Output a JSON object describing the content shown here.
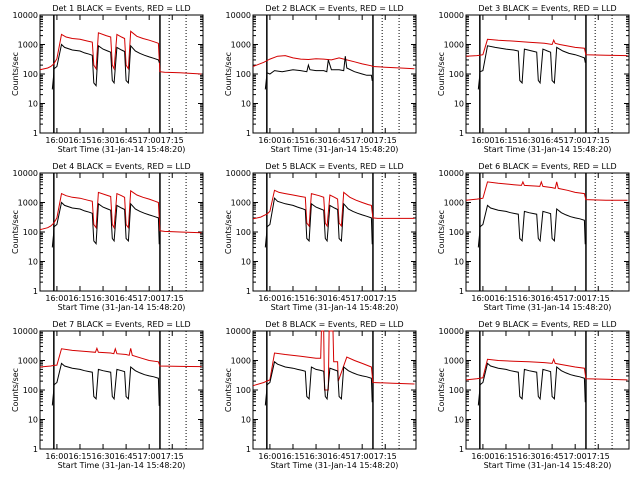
{
  "chart_data": {
    "type": "line",
    "y_scale": "log",
    "ylim": [
      1,
      10000
    ],
    "ylabel": "Counts/sec",
    "xlabel": "Start Time (31-Jan-14 15:48:20)",
    "x_ticks": [
      "16:00",
      "16:15",
      "16:30",
      "16:45",
      "17:00",
      "17:15"
    ],
    "y_ticks": [
      "1",
      "10",
      "100",
      "1000",
      "10000"
    ],
    "x_tick_times": [
      0,
      15,
      30,
      45,
      60,
      75
    ],
    "xlim": [
      -11,
      95
    ],
    "solid_markers": [
      -2,
      67
    ],
    "dotted_markers": [
      73,
      84
    ],
    "series_colors": {
      "events": "#000000",
      "lld": "#d40000"
    },
    "legend_text": "BLACK = Events, RED = LLD",
    "panels": [
      {
        "title": "Det 1",
        "events": {
          "x": [
            -3,
            -2,
            -1.8,
            0,
            3,
            5,
            10,
            15,
            18,
            21,
            23,
            24,
            25.5,
            27,
            30,
            33,
            35,
            36,
            37.2,
            39,
            42,
            44,
            45,
            46.5,
            48,
            51,
            54,
            57,
            60,
            63,
            66,
            66.5,
            67
          ],
          "y": [
            30,
            100,
            150,
            180,
            1000,
            800,
            650,
            600,
            520,
            470,
            430,
            50,
            40,
            900,
            700,
            600,
            550,
            60,
            50,
            800,
            650,
            580,
            60,
            50,
            900,
            600,
            500,
            430,
            380,
            340,
            300,
            250,
            250
          ]
        },
        "lld": {
          "x": [
            -11,
            -6,
            -4,
            -2,
            0,
            3,
            6,
            10,
            15,
            20,
            23,
            24,
            25.5,
            27,
            32,
            35,
            36,
            37.2,
            39,
            42,
            44,
            45,
            46.5,
            48,
            52,
            56,
            60,
            64,
            66,
            67,
            70,
            80,
            94
          ],
          "y": [
            140,
            160,
            180,
            220,
            330,
            2200,
            1800,
            1600,
            1500,
            1300,
            1200,
            200,
            150,
            2500,
            2000,
            1800,
            200,
            150,
            2200,
            1800,
            1600,
            200,
            150,
            2800,
            1900,
            1600,
            1400,
            1200,
            1100,
            120,
            115,
            110,
            100
          ]
        }
      },
      {
        "title": "Det 2",
        "events": {
          "x": [
            -3,
            -2,
            -1.8,
            0,
            3,
            8,
            15,
            20,
            24,
            25,
            26,
            30,
            35,
            37,
            38,
            40,
            45,
            48,
            49,
            50,
            55,
            60,
            63,
            66,
            66.5,
            67
          ],
          "y": [
            30,
            90,
            110,
            100,
            130,
            120,
            140,
            130,
            120,
            200,
            140,
            130,
            130,
            120,
            300,
            140,
            140,
            130,
            400,
            160,
            120,
            100,
            90,
            90,
            60,
            60
          ]
        },
        "lld": {
          "x": [
            -11,
            -4,
            0,
            5,
            10,
            15,
            20,
            25,
            30,
            35,
            40,
            45,
            50,
            55,
            60,
            66,
            67,
            75,
            85,
            94
          ],
          "y": [
            180,
            250,
            320,
            400,
            420,
            350,
            320,
            310,
            330,
            320,
            300,
            350,
            300,
            260,
            220,
            190,
            180,
            170,
            160,
            150
          ]
        }
      },
      {
        "title": "Det 3",
        "events": {
          "x": [
            -3,
            -2,
            -1.8,
            0,
            3,
            8,
            15,
            20,
            23,
            24,
            25.5,
            27,
            32,
            35,
            36,
            37.2,
            39,
            42,
            44,
            45,
            46.5,
            48,
            52,
            56,
            60,
            63,
            66,
            66.5,
            67
          ],
          "y": [
            30,
            90,
            120,
            130,
            900,
            800,
            700,
            650,
            600,
            60,
            50,
            700,
            600,
            550,
            60,
            50,
            700,
            600,
            550,
            60,
            50,
            800,
            600,
            500,
            450,
            400,
            350,
            250,
            250
          ]
        },
        "lld": {
          "x": [
            -11,
            -4,
            -2,
            0,
            3,
            10,
            20,
            30,
            40,
            45,
            46,
            47,
            50,
            60,
            66,
            67,
            80,
            94
          ],
          "y": [
            400,
            420,
            430,
            450,
            1500,
            1400,
            1300,
            1200,
            1100,
            1000,
            1400,
            1100,
            1000,
            800,
            750,
            450,
            430,
            420
          ]
        }
      },
      {
        "title": "Det 4",
        "events": {
          "x": [
            -3,
            -2,
            -1.8,
            0,
            3,
            5,
            10,
            15,
            18,
            21,
            23,
            24,
            25.5,
            27,
            30,
            33,
            35,
            36,
            37.2,
            39,
            42,
            44,
            45,
            46.5,
            48,
            51,
            54,
            57,
            60,
            63,
            66,
            66.5,
            67
          ],
          "y": [
            30,
            100,
            150,
            180,
            1000,
            800,
            650,
            600,
            520,
            470,
            430,
            50,
            40,
            900,
            700,
            600,
            550,
            60,
            50,
            800,
            650,
            580,
            60,
            50,
            900,
            600,
            500,
            430,
            380,
            340,
            300,
            40,
            40
          ]
        },
        "lld": {
          "x": [
            -11,
            -6,
            -4,
            -2,
            0,
            3,
            6,
            10,
            15,
            20,
            23,
            24,
            25.5,
            27,
            32,
            35,
            36,
            37.2,
            39,
            42,
            44,
            45,
            46.5,
            48,
            52,
            56,
            60,
            64,
            66,
            67,
            70,
            80,
            94
          ],
          "y": [
            120,
            140,
            160,
            200,
            300,
            2000,
            1700,
            1500,
            1400,
            1200,
            1100,
            180,
            140,
            2200,
            1800,
            1600,
            180,
            140,
            2000,
            1700,
            1500,
            180,
            140,
            2500,
            1800,
            1500,
            1300,
            1100,
            1000,
            110,
            105,
            100,
            95
          ]
        }
      },
      {
        "title": "Det 5",
        "events": {
          "x": [
            -3,
            -2,
            -1.8,
            0,
            3,
            5,
            10,
            15,
            18,
            21,
            23,
            24,
            25.5,
            27,
            30,
            33,
            35,
            36,
            37.2,
            39,
            42,
            44,
            45,
            46.5,
            48,
            51,
            54,
            57,
            60,
            63,
            66,
            66.5,
            67
          ],
          "y": [
            30,
            100,
            150,
            180,
            1400,
            1100,
            900,
            800,
            700,
            620,
            560,
            60,
            50,
            900,
            700,
            600,
            550,
            60,
            50,
            800,
            650,
            580,
            60,
            50,
            900,
            600,
            500,
            430,
            380,
            340,
            300,
            40,
            40
          ]
        },
        "lld": {
          "x": [
            -11,
            -6,
            -4,
            -2,
            0,
            3,
            6,
            10,
            15,
            20,
            23,
            24,
            25.5,
            27,
            32,
            35,
            36,
            37.2,
            39,
            42,
            44,
            45,
            46.5,
            48,
            52,
            56,
            60,
            64,
            66,
            67,
            70,
            80,
            94
          ],
          "y": [
            280,
            320,
            360,
            400,
            500,
            2600,
            2200,
            2000,
            1800,
            1600,
            1500,
            200,
            160,
            2000,
            1700,
            1500,
            200,
            160,
            1800,
            1500,
            1300,
            200,
            160,
            2200,
            1500,
            1200,
            1000,
            850,
            800,
            300,
            290,
            290,
            290
          ]
        }
      },
      {
        "title": "Det 6",
        "events": {
          "x": [
            -3,
            -2,
            -1.8,
            0,
            3,
            5,
            10,
            15,
            18,
            21,
            23,
            24,
            25.5,
            27,
            30,
            33,
            35,
            36,
            37.2,
            39,
            42,
            44,
            45,
            46.5,
            48,
            51,
            54,
            57,
            60,
            63,
            66,
            66.5,
            67
          ],
          "y": [
            30,
            100,
            150,
            180,
            800,
            650,
            550,
            500,
            450,
            420,
            400,
            60,
            50,
            500,
            450,
            420,
            400,
            60,
            50,
            500,
            450,
            420,
            60,
            50,
            600,
            450,
            380,
            330,
            300,
            280,
            250,
            40,
            40
          ]
        },
        "lld": {
          "x": [
            -11,
            -4,
            -2,
            0,
            3,
            10,
            20,
            25,
            26,
            27,
            35,
            37,
            38,
            39,
            45,
            47,
            48,
            49,
            55,
            60,
            66,
            67,
            80,
            94
          ],
          "y": [
            1200,
            1300,
            1350,
            1400,
            5000,
            4500,
            4000,
            3800,
            5000,
            3800,
            3600,
            3500,
            5000,
            3500,
            3200,
            3000,
            5000,
            3000,
            2600,
            2200,
            2000,
            1250,
            1200,
            1200
          ]
        }
      },
      {
        "title": "Det 7",
        "events": {
          "x": [
            -3,
            -2,
            -1.8,
            0,
            3,
            5,
            10,
            15,
            18,
            21,
            23,
            24,
            25.5,
            27,
            30,
            33,
            35,
            36,
            37.2,
            39,
            42,
            44,
            45,
            46.5,
            48,
            51,
            54,
            57,
            60,
            63,
            66,
            66.5,
            67
          ],
          "y": [
            30,
            100,
            150,
            180,
            800,
            650,
            550,
            500,
            450,
            420,
            400,
            60,
            50,
            500,
            450,
            420,
            400,
            60,
            50,
            500,
            450,
            420,
            60,
            50,
            600,
            450,
            380,
            330,
            300,
            280,
            250,
            30,
            30
          ]
        },
        "lld": {
          "x": [
            -11,
            -4,
            -2,
            0,
            3,
            10,
            20,
            25,
            26,
            27,
            35,
            37,
            38,
            39,
            45,
            47,
            48,
            49,
            55,
            60,
            66,
            67,
            80,
            94
          ],
          "y": [
            600,
            650,
            680,
            700,
            2500,
            2200,
            2000,
            1900,
            2600,
            1900,
            1800,
            1700,
            2500,
            1700,
            1600,
            1500,
            2600,
            1500,
            1200,
            1000,
            900,
            650,
            630,
            620
          ]
        }
      },
      {
        "title": "Det 8",
        "events": {
          "x": [
            -3,
            -2,
            -1.8,
            0,
            3,
            5,
            10,
            15,
            18,
            21,
            23,
            24,
            25.5,
            27,
            30,
            33,
            35,
            36,
            37.2,
            39,
            42,
            44,
            45,
            46.5,
            48,
            51,
            54,
            57,
            60,
            63,
            66,
            66.5,
            67
          ],
          "y": [
            30,
            100,
            150,
            180,
            900,
            750,
            600,
            550,
            500,
            460,
            430,
            60,
            50,
            600,
            500,
            460,
            430,
            60,
            50,
            550,
            480,
            440,
            60,
            50,
            600,
            450,
            380,
            330,
            300,
            280,
            250,
            40,
            40
          ]
        },
        "lld": {
          "x": [
            -11,
            -4,
            -2,
            0,
            3,
            10,
            20,
            30,
            33,
            33.5,
            35,
            35.5,
            38,
            38.5,
            41,
            41.5,
            44,
            44.5,
            50,
            55,
            60,
            66,
            67,
            80,
            94
          ],
          "y": [
            140,
            180,
            200,
            220,
            1800,
            1600,
            1400,
            1200,
            1200,
            10000,
            10000,
            100,
            100,
            10000,
            10000,
            900,
            900,
            200,
            1300,
            1000,
            800,
            600,
            180,
            170,
            160
          ]
        }
      },
      {
        "title": "Det 9",
        "events": {
          "x": [
            -3,
            -2,
            -1.8,
            0,
            3,
            5,
            10,
            15,
            18,
            21,
            23,
            24,
            25.5,
            27,
            30,
            33,
            35,
            36,
            37.2,
            39,
            42,
            44,
            45,
            46.5,
            48,
            51,
            54,
            57,
            60,
            63,
            66,
            66.5,
            67
          ],
          "y": [
            30,
            100,
            150,
            180,
            800,
            650,
            550,
            500,
            450,
            420,
            400,
            60,
            50,
            500,
            450,
            420,
            400,
            60,
            50,
            500,
            450,
            420,
            60,
            50,
            600,
            450,
            380,
            330,
            300,
            280,
            250,
            40,
            40
          ]
        },
        "lld": {
          "x": [
            -11,
            -4,
            -2,
            0,
            3,
            10,
            20,
            30,
            40,
            45,
            46,
            47,
            50,
            60,
            66,
            67,
            80,
            94
          ],
          "y": [
            220,
            240,
            250,
            260,
            1100,
            1000,
            950,
            900,
            850,
            800,
            1100,
            800,
            750,
            600,
            550,
            240,
            230,
            220
          ]
        }
      }
    ]
  }
}
